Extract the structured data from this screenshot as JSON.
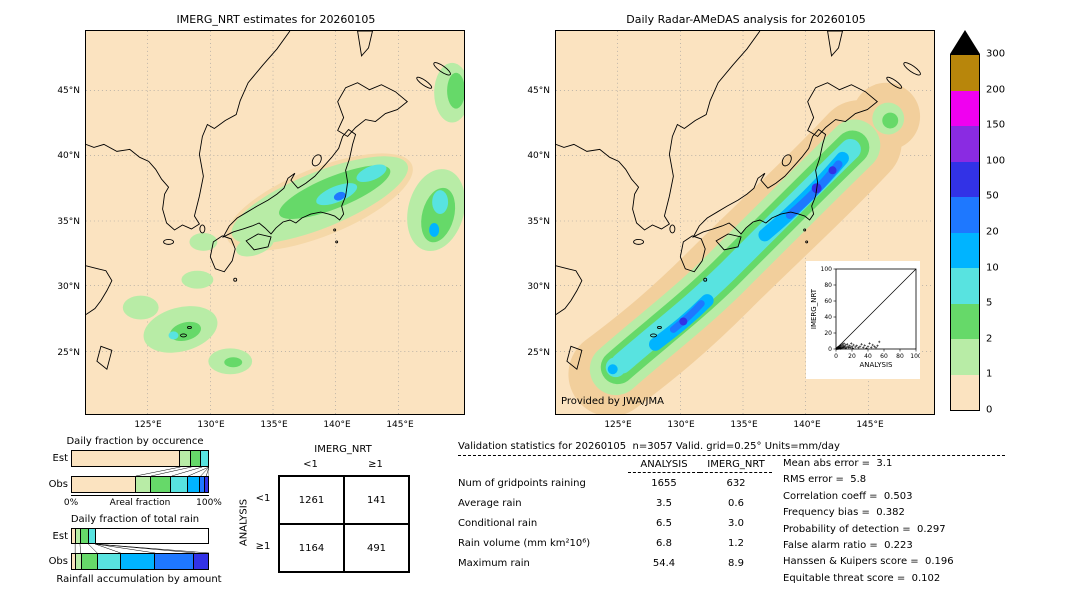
{
  "left_map": {
    "title": "IMERG_NRT estimates for 20260105",
    "lat_ticks": [
      "45°N",
      "40°N",
      "35°N",
      "30°N",
      "25°N"
    ],
    "lon_ticks": [
      "125°E",
      "130°E",
      "135°E",
      "140°E",
      "145°E"
    ]
  },
  "right_map": {
    "title": "Daily Radar-AMeDAS analysis for 20260105",
    "credit": "Provided by JWA/JMA",
    "lat_ticks": [
      "45°N",
      "40°N",
      "35°N",
      "30°N",
      "25°N"
    ],
    "lon_ticks": [
      "125°E",
      "130°E",
      "135°E",
      "140°E",
      "145°E"
    ]
  },
  "colorbar": {
    "labels": [
      "300",
      "200",
      "150",
      "100",
      "50",
      "20",
      "10",
      "5",
      "2",
      "1",
      "0"
    ],
    "colors": [
      "#b8860b",
      "#f000f0",
      "#8a2be2",
      "#3232e6",
      "#1e78ff",
      "#00b4ff",
      "#58e3e0",
      "#66d969",
      "#b8eca6",
      "#fbe3c0"
    ]
  },
  "occurrence": {
    "title": "Daily fraction by occurence",
    "row_labels": [
      "Est",
      "Obs"
    ],
    "x_left": "0%",
    "x_center": "Areal fraction",
    "x_right": "100%",
    "est": [
      {
        "c": "#fbe3c0",
        "p": 79.3
      },
      {
        "c": "#b8eca6",
        "p": 8
      },
      {
        "c": "#66d969",
        "p": 7.7
      },
      {
        "c": "#58e3e0",
        "p": 5
      }
    ],
    "obs": [
      {
        "c": "#fbe3c0",
        "p": 47
      },
      {
        "c": "#b8eca6",
        "p": 11
      },
      {
        "c": "#66d969",
        "p": 15
      },
      {
        "c": "#58e3e0",
        "p": 12
      },
      {
        "c": "#00b4ff",
        "p": 9
      },
      {
        "c": "#1e78ff",
        "p": 4
      },
      {
        "c": "#3232e6",
        "p": 2
      }
    ]
  },
  "total_rain": {
    "title": "Daily fraction of total rain",
    "row_labels": [
      "Est",
      "Obs"
    ],
    "caption": "Rainfall accumulation by amount",
    "est": [
      {
        "c": "#fbe3c0",
        "p": 3
      },
      {
        "c": "#b8eca6",
        "p": 3.5
      },
      {
        "c": "#66d969",
        "p": 6
      },
      {
        "c": "#58e3e0",
        "p": 5
      }
    ],
    "obs": [
      {
        "c": "#fbe3c0",
        "p": 3
      },
      {
        "c": "#b8eca6",
        "p": 4
      },
      {
        "c": "#66d969",
        "p": 12
      },
      {
        "c": "#58e3e0",
        "p": 17
      },
      {
        "c": "#00b4ff",
        "p": 25
      },
      {
        "c": "#1e78ff",
        "p": 29
      },
      {
        "c": "#3232e6",
        "p": 10
      }
    ]
  },
  "contingency": {
    "col_header": "IMERG_NRT",
    "row_header": "ANALYSIS",
    "col_labels": [
      "<1",
      "≥1"
    ],
    "row_labels": [
      "<1",
      "≥1"
    ],
    "cells": [
      [
        "1261",
        "141"
      ],
      [
        "1164",
        "491"
      ]
    ]
  },
  "stats": {
    "title": "Validation statistics for 20260105  n=3057 Valid. grid=0.25° Units=mm/day",
    "col1": "ANALYSIS",
    "col2": "IMERG_NRT",
    "rows": [
      {
        "label": "Num of gridpoints raining",
        "analysis": "1655",
        "imerg": "632"
      },
      {
        "label": "Average rain",
        "analysis": "3.5",
        "imerg": "0.6"
      },
      {
        "label": "Conditional rain",
        "analysis": "6.5",
        "imerg": "3.0"
      },
      {
        "label": "Rain volume (mm km²10⁶)",
        "analysis": "6.8",
        "imerg": "1.2"
      },
      {
        "label": "Maximum rain",
        "analysis": "54.4",
        "imerg": "8.9"
      }
    ],
    "scores": [
      {
        "label": "Mean abs error",
        "value": "3.1"
      },
      {
        "label": "RMS error",
        "value": "5.8"
      },
      {
        "label": "Correlation coeff",
        "value": "0.503"
      },
      {
        "label": "Frequency bias",
        "value": "0.382"
      },
      {
        "label": "Probability of detection",
        "value": "0.297"
      },
      {
        "label": "False alarm ratio",
        "value": "0.223"
      },
      {
        "label": "Hanssen & Kuipers score",
        "value": "0.196"
      },
      {
        "label": "Equitable threat score",
        "value": "0.102"
      }
    ]
  },
  "chart_data": [
    {
      "type": "heatmap",
      "subtype": "precipitation-map",
      "title": "IMERG_NRT estimates for 20260105",
      "units": "mm/day",
      "lat_ticks": [
        "45N",
        "40N",
        "35N",
        "30N",
        "25N"
      ],
      "lon_ticks": [
        "125E",
        "130E",
        "135E",
        "140E",
        "145E"
      ],
      "legend_bins": [
        0,
        1,
        2,
        5,
        10,
        20,
        50,
        100,
        150,
        200,
        300
      ]
    },
    {
      "type": "heatmap",
      "subtype": "precipitation-map",
      "title": "Daily Radar-AMeDAS analysis for 20260105",
      "units": "mm/day",
      "lat_ticks": [
        "45N",
        "40N",
        "35N",
        "30N",
        "25N"
      ],
      "lon_ticks": [
        "125E",
        "130E",
        "135E",
        "140E",
        "145E"
      ],
      "legend_bins": [
        0,
        1,
        2,
        5,
        10,
        20,
        50,
        100,
        150,
        200,
        300
      ],
      "credit": "Provided by JWA/JMA"
    },
    {
      "type": "scatter",
      "xlabel": "ANALYSIS",
      "ylabel": "IMERG_NRT",
      "xlim": [
        0,
        100
      ],
      "ylim": [
        0,
        100
      ],
      "ticks": [
        0,
        20,
        40,
        60,
        80,
        100
      ],
      "diagonal": true,
      "points": [
        [
          0.5,
          0.2
        ],
        [
          1,
          0.5
        ],
        [
          1.5,
          1.2
        ],
        [
          2,
          0.3
        ],
        [
          2,
          2
        ],
        [
          2.5,
          1
        ],
        [
          3,
          0.5
        ],
        [
          3,
          2.5
        ],
        [
          3.5,
          1.5
        ],
        [
          4,
          0.8
        ],
        [
          4,
          3
        ],
        [
          4.5,
          2
        ],
        [
          5,
          1
        ],
        [
          5,
          4
        ],
        [
          5.5,
          0.5
        ],
        [
          6,
          2
        ],
        [
          6,
          5
        ],
        [
          7,
          1
        ],
        [
          7,
          3.5
        ],
        [
          8,
          2
        ],
        [
          8,
          6
        ],
        [
          9,
          1.5
        ],
        [
          9,
          4
        ],
        [
          10,
          2.5
        ],
        [
          10,
          7
        ],
        [
          11,
          3
        ],
        [
          12,
          1
        ],
        [
          12,
          5
        ],
        [
          13,
          2
        ],
        [
          14,
          6
        ],
        [
          15,
          3
        ],
        [
          16,
          1.5
        ],
        [
          17,
          4
        ],
        [
          18,
          2
        ],
        [
          19,
          7
        ],
        [
          20,
          3
        ],
        [
          21,
          1
        ],
        [
          22,
          5
        ],
        [
          24,
          2.5
        ],
        [
          26,
          4
        ],
        [
          28,
          1.5
        ],
        [
          30,
          3
        ],
        [
          32,
          6
        ],
        [
          34,
          2
        ],
        [
          36,
          4.5
        ],
        [
          38,
          1
        ],
        [
          40,
          3
        ],
        [
          42,
          7
        ],
        [
          44,
          2
        ],
        [
          46,
          5
        ],
        [
          48,
          3
        ],
        [
          50,
          1.5
        ],
        [
          52,
          4
        ],
        [
          54,
          8.9
        ]
      ]
    },
    {
      "type": "bar",
      "subtype": "stacked-horizontal",
      "title": "Daily fraction by occurence",
      "xlabel": "Areal fraction",
      "xlim_labels": [
        "0%",
        "100%"
      ],
      "categories": [
        "Est",
        "Obs"
      ],
      "bins_mm": [
        "0-1",
        "1-2",
        "2-5",
        "5-10",
        "10-20",
        "20-50",
        "50-100"
      ],
      "series": [
        {
          "name": "Est",
          "values": [
            79.3,
            8,
            7.7,
            5,
            0,
            0,
            0
          ]
        },
        {
          "name": "Obs",
          "values": [
            47,
            11,
            15,
            12,
            9,
            4,
            2
          ]
        }
      ]
    },
    {
      "type": "bar",
      "subtype": "stacked-horizontal",
      "title": "Daily fraction of total rain",
      "note": "Rainfall accumulation by amount",
      "categories": [
        "Est",
        "Obs"
      ],
      "bins_mm": [
        "0-1",
        "1-2",
        "2-5",
        "5-10",
        "10-20",
        "20-50",
        "50-100"
      ],
      "series": [
        {
          "name": "Est",
          "values": [
            3,
            3.5,
            6,
            5,
            0,
            0,
            0
          ]
        },
        {
          "name": "Obs",
          "values": [
            3,
            4,
            12,
            17,
            25,
            29,
            10
          ]
        }
      ]
    },
    {
      "type": "table",
      "subtype": "contingency",
      "col_header": "IMERG_NRT",
      "row_header": "ANALYSIS",
      "col_labels": [
        "<1",
        "≥1"
      ],
      "row_labels": [
        "<1",
        "≥1"
      ],
      "values": [
        [
          1261,
          141
        ],
        [
          1164,
          491
        ]
      ]
    },
    {
      "type": "table",
      "subtype": "validation-statistics",
      "title": "Validation statistics for 20260105  n=3057 Valid. grid=0.25° Units=mm/day",
      "columns": [
        "ANALYSIS",
        "IMERG_NRT"
      ],
      "rows": [
        [
          "Num of gridpoints raining",
          1655,
          632
        ],
        [
          "Average rain",
          3.5,
          0.6
        ],
        [
          "Conditional rain",
          6.5,
          3.0
        ],
        [
          "Rain volume (mm km²10⁶)",
          6.8,
          1.2
        ],
        [
          "Maximum rain",
          54.4,
          8.9
        ]
      ],
      "scores": [
        [
          "Mean abs error",
          3.1
        ],
        [
          "RMS error",
          5.8
        ],
        [
          "Correlation coeff",
          0.503
        ],
        [
          "Frequency bias",
          0.382
        ],
        [
          "Probability of detection",
          0.297
        ],
        [
          "False alarm ratio",
          0.223
        ],
        [
          "Hanssen & Kuipers score",
          0.196
        ],
        [
          "Equitable threat score",
          0.102
        ]
      ]
    }
  ]
}
